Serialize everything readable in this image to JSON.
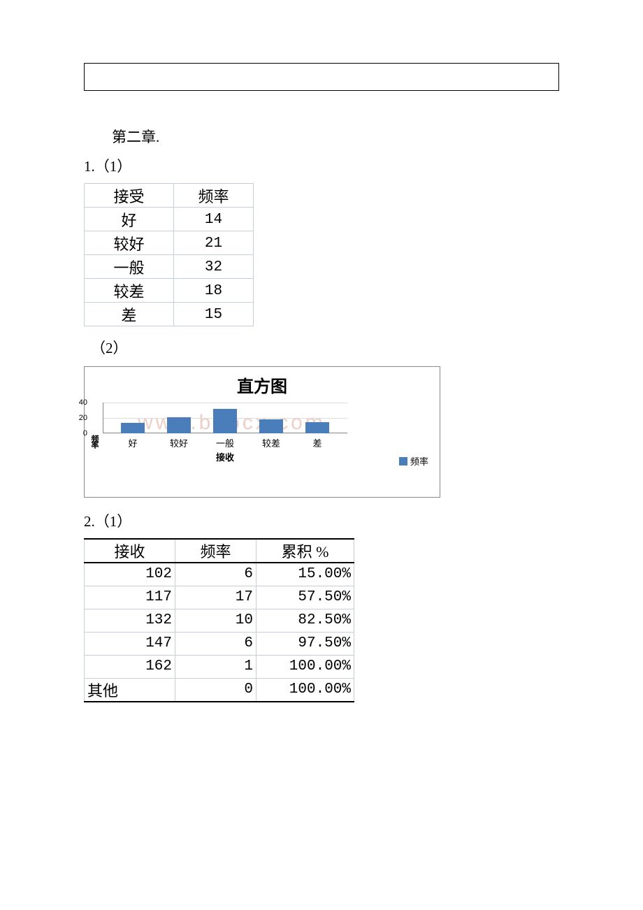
{
  "chapter_heading": "第二章.",
  "q1_label": "1.（1）",
  "part2_label": "（2）",
  "q2_label": "2.（1）",
  "table1": {
    "headers": [
      "接受",
      "频率"
    ],
    "rows": [
      {
        "label": "好",
        "freq": "14"
      },
      {
        "label": "较好",
        "freq": "21"
      },
      {
        "label": "一般",
        "freq": "32"
      },
      {
        "label": "较差",
        "freq": "18"
      },
      {
        "label": "差",
        "freq": "15"
      }
    ]
  },
  "chart": {
    "title": "直方图",
    "y_label": "频率",
    "x_label": "接收",
    "legend_label": "频率",
    "y_ticks": [
      "0",
      "20",
      "40"
    ],
    "y_max": 40,
    "bar_color": "#4a7ebb",
    "grid_color": "#dcdcdc",
    "axis_color": "#868686",
    "categories": [
      "好",
      "较好",
      "一般",
      "较差",
      "差"
    ],
    "values": [
      14,
      21,
      32,
      18,
      15
    ],
    "watermark": "www.bdocx.com"
  },
  "table2": {
    "headers": [
      "接收",
      "频率",
      "累积 %"
    ],
    "rows": [
      {
        "a": "102",
        "b": "6",
        "c": "15.00%",
        "a_align": "r"
      },
      {
        "a": "117",
        "b": "17",
        "c": "57.50%",
        "a_align": "r"
      },
      {
        "a": "132",
        "b": "10",
        "c": "82.50%",
        "a_align": "r"
      },
      {
        "a": "147",
        "b": "6",
        "c": "97.50%",
        "a_align": "r"
      },
      {
        "a": "162",
        "b": "1",
        "c": "100.00%",
        "a_align": "r"
      },
      {
        "a": "其他",
        "b": "0",
        "c": "100.00%",
        "a_align": "l"
      }
    ]
  }
}
